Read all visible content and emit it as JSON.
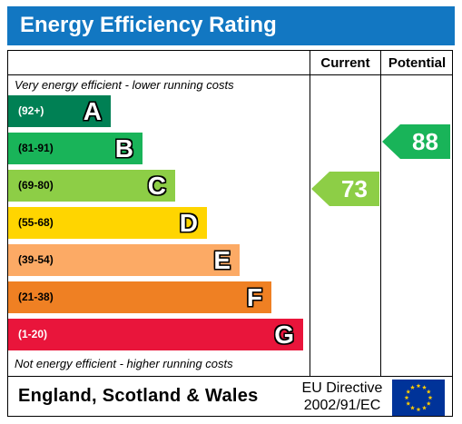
{
  "title": "Energy Efficiency Rating",
  "columns": {
    "current": "Current",
    "potential": "Potential"
  },
  "notes": {
    "top": "Very energy efficient - lower running costs",
    "bottom": "Not energy efficient - higher running costs"
  },
  "bands": [
    {
      "range": "(92+)",
      "letter": "A",
      "color": "#008054"
    },
    {
      "range": "(81-91)",
      "letter": "B",
      "color": "#19b459"
    },
    {
      "range": "(69-80)",
      "letter": "C",
      "color": "#8dce46"
    },
    {
      "range": "(55-68)",
      "letter": "D",
      "color": "#ffd500"
    },
    {
      "range": "(39-54)",
      "letter": "E",
      "color": "#fcaa65"
    },
    {
      "range": "(21-38)",
      "letter": "F",
      "color": "#ef8023"
    },
    {
      "range": "(1-20)",
      "letter": "G",
      "color": "#e9153b"
    }
  ],
  "current_rating": {
    "value": "73",
    "band": "C",
    "color": "#8dce46"
  },
  "potential_rating": {
    "value": "88",
    "band": "B",
    "color": "#19b459"
  },
  "footer": {
    "region": "England, Scotland & Wales",
    "directive_line1": "EU Directive",
    "directive_line2": "2002/91/EC",
    "flag_icon": "eu-flag-icon",
    "flag_color": "#003399",
    "star_color": "#ffcc00"
  }
}
